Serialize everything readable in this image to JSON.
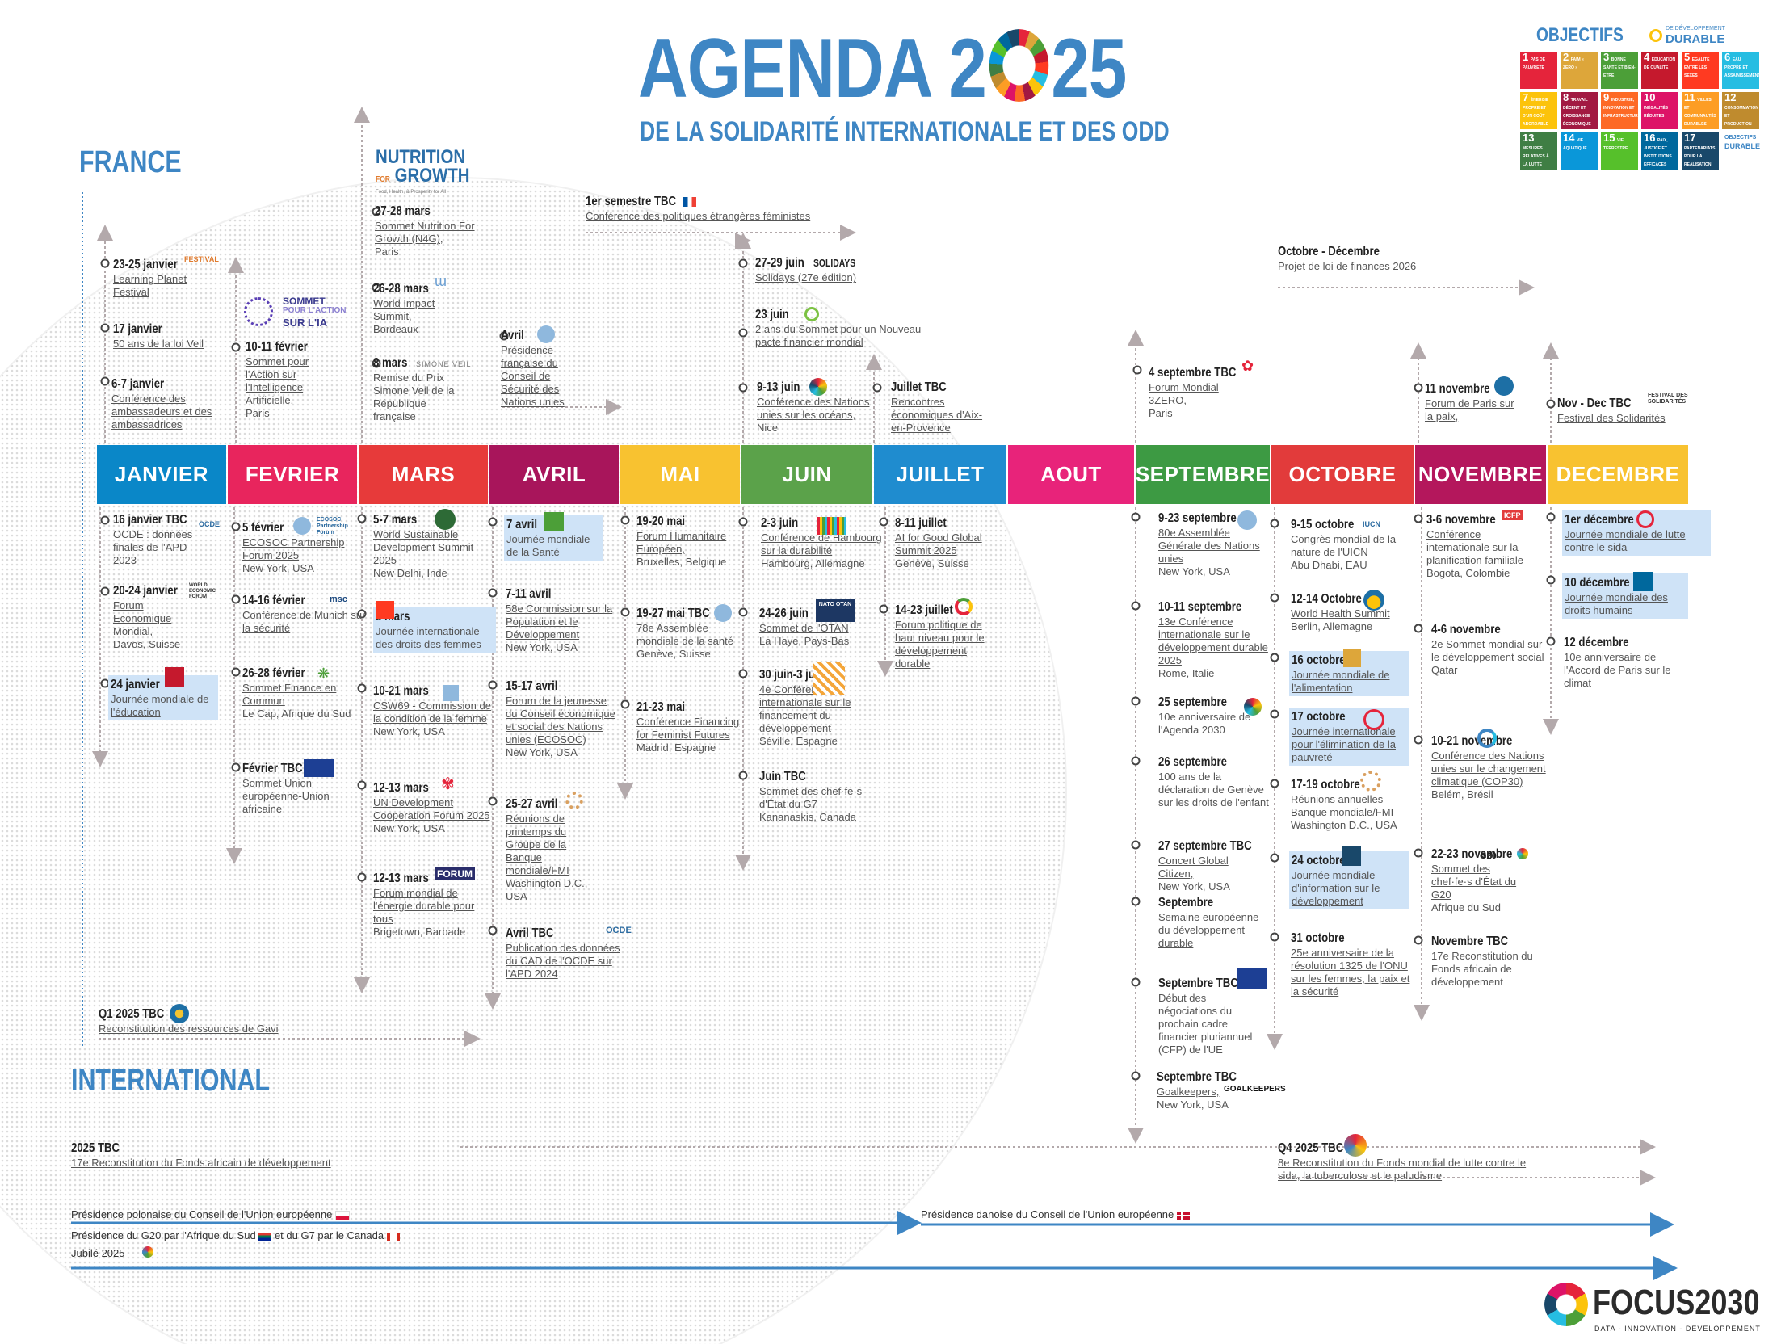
{
  "header": {
    "title_left": "AGENDA 2",
    "title_right": "25",
    "subtitle": "DE LA SOLIDARITÉ INTERNATIONALE ET DES ODD"
  },
  "sections": {
    "france": "FRANCE",
    "international": "INTERNATIONAL"
  },
  "odd_logo": {
    "word": "OBJECTIFS",
    "sub1": "DE DÉVELOPPEMENT",
    "sub2": "DURABLE"
  },
  "sdg_tiles": [
    {
      "n": "1",
      "label": "PAS DE PAUVRETÉ",
      "color": "#e5243b"
    },
    {
      "n": "2",
      "label": "FAIM « ZÉRO »",
      "color": "#dda63a"
    },
    {
      "n": "3",
      "label": "BONNE SANTÉ ET BIEN-ÊTRE",
      "color": "#4c9f38"
    },
    {
      "n": "4",
      "label": "ÉDUCATION DE QUALITÉ",
      "color": "#c5192d"
    },
    {
      "n": "5",
      "label": "ÉGALITÉ ENTRE LES SEXES",
      "color": "#ff3a21"
    },
    {
      "n": "6",
      "label": "EAU PROPRE ET ASSAINISSEMENT",
      "color": "#26bde2"
    },
    {
      "n": "7",
      "label": "ÉNERGIE PROPRE ET D'UN COÛT ABORDABLE",
      "color": "#fcc30b"
    },
    {
      "n": "8",
      "label": "TRAVAIL DÉCENT ET CROISSANCE ÉCONOMIQUE",
      "color": "#a21942"
    },
    {
      "n": "9",
      "label": "INDUSTRIE, INNOVATION ET INFRASTRUCTURE",
      "color": "#fd6925"
    },
    {
      "n": "10",
      "label": "INÉGALITÉS RÉDUITES",
      "color": "#dd1367"
    },
    {
      "n": "11",
      "label": "VILLES ET COMMUNAUTÉS DURABLES",
      "color": "#fd9d24"
    },
    {
      "n": "12",
      "label": "CONSOMMATION ET PRODUCTION RESPONSABLES",
      "color": "#bf8b2e"
    },
    {
      "n": "13",
      "label": "MESURES RELATIVES À LA LUTTE CONTRE LES CHANGEMENTS CLIMATIQUES",
      "color": "#3f7e44"
    },
    {
      "n": "14",
      "label": "VIE AQUATIQUE",
      "color": "#0a97d9"
    },
    {
      "n": "15",
      "label": "VIE TERRESTRE",
      "color": "#56c02b"
    },
    {
      "n": "16",
      "label": "PAIX, JUSTICE ET INSTITUTIONS EFFICACES",
      "color": "#00689d"
    },
    {
      "n": "17",
      "label": "PARTENARIATS POUR LA RÉALISATION DES OBJECTIFS",
      "color": "#19486a"
    }
  ],
  "months": [
    {
      "label": "JANVIER",
      "color": "#0a87c8"
    },
    {
      "label": "FEVRIER",
      "color": "#e8255d"
    },
    {
      "label": "MARS",
      "color": "#e73a3a"
    },
    {
      "label": "AVRIL",
      "color": "#a8155b"
    },
    {
      "label": "MAI",
      "color": "#f8c230"
    },
    {
      "label": "JUIN",
      "color": "#5ba24a"
    },
    {
      "label": "JUILLET",
      "color": "#1f8ccf"
    },
    {
      "label": "AOUT",
      "color": "#e8237a"
    },
    {
      "label": "SEPTEMBRE",
      "color": "#3d9a43"
    },
    {
      "label": "OCTOBRE",
      "color": "#e23b3b"
    },
    {
      "label": "NOVEMBRE",
      "color": "#b4175c"
    },
    {
      "label": "DECEMBRE",
      "color": "#f8c230"
    }
  ],
  "france_events": [
    {
      "d": "23-25 janvier",
      "t": "Learning Planet Festival",
      "p": ""
    },
    {
      "d": "17 janvier",
      "t": "50 ans de la loi Veil",
      "p": ""
    },
    {
      "d": "6-7 janvier",
      "t": "Conférence des ambassadeurs et des ambassadrices",
      "p": ""
    },
    {
      "d": "10-11 février",
      "t": "Sommet pour l'Action sur l'Intelligence Artificielle,",
      "p": "Paris"
    },
    {
      "d": "27-28 mars",
      "t": "Sommet Nutrition For Growth (N4G),",
      "p": "Paris"
    },
    {
      "d": "26-28 mars",
      "t": "World Impact Summit,",
      "p": "Bordeaux"
    },
    {
      "d": "8 mars",
      "t": "",
      "p": "Remise du Prix Simone Veil de la République française"
    },
    {
      "d": "Avril",
      "t": "Présidence française du Conseil de Sécurité des Nations unies",
      "p": ""
    },
    {
      "d": "1er semestre TBC",
      "t": "Conférence des politiques étrangères féministes",
      "p": ""
    },
    {
      "d": "27-29 juin",
      "t": "Solidays (27e édition)",
      "p": ""
    },
    {
      "d": "23 juin",
      "t": "2 ans du Sommet pour un Nouveau pacte financier mondial",
      "p": ""
    },
    {
      "d": "9-13 juin",
      "t": "Conférence des Nations unies sur les océans,",
      "p": "Nice"
    },
    {
      "d": "Juillet TBC",
      "t": "Rencontres économiques d'Aix-en-Provence",
      "p": ""
    },
    {
      "d": "Octobre - Décembre",
      "t": "",
      "p": "Projet de loi de finances 2026"
    },
    {
      "d": "4 septembre TBC",
      "t": "Forum Mondial 3ZERO,",
      "p": "Paris"
    },
    {
      "d": "11 novembre",
      "t": "Forum de Paris sur la paix,",
      "p": "Paris"
    },
    {
      "d": "Nov - Dec TBC",
      "t": "Festival des Solidarités",
      "p": ""
    }
  ],
  "intl_events": [
    {
      "d": "16 janvier TBC",
      "t": "",
      "p": "OCDE : données finales de l'APD 2023"
    },
    {
      "d": "20-24 janvier",
      "t": "Forum Economique Mondial,",
      "p": "Davos, Suisse"
    },
    {
      "d": "24 janvier",
      "t": "Journée mondiale de l'éducation",
      "p": ""
    },
    {
      "d": "5 février",
      "t": "ECOSOC Partnership Forum 2025",
      "p": "New York, USA"
    },
    {
      "d": "14-16 février",
      "t": "Conférence de Munich sur la sécurité",
      "p": ""
    },
    {
      "d": "26-28 février",
      "t": "Sommet Finance en Commun",
      "p": "Le Cap, Afrique du Sud"
    },
    {
      "d": "Février TBC",
      "t": "",
      "p": "Sommet Union européenne-Union africaine"
    },
    {
      "d": "5-7 mars",
      "t": "World Sustainable Development Summit 2025",
      "p": "New Delhi, Inde"
    },
    {
      "d": "8 mars",
      "t": "Journée internationale des droits des femmes",
      "p": ""
    },
    {
      "d": "10-21 mars",
      "t": "CSW69 - Commission de la condition de la femme",
      "p": "New York, USA"
    },
    {
      "d": "12-13 mars",
      "t": "UN Development Cooperation Forum 2025",
      "p": "New York, USA"
    },
    {
      "d": "12-13 mars",
      "t": "Forum mondial de l'énergie durable pour tous",
      "p": "Brigetown, Barbade"
    },
    {
      "d": "7 avril",
      "t": "Journée mondiale de la Santé",
      "p": ""
    },
    {
      "d": "7-11 avril",
      "t": "58e Commission sur la Population et le Développement",
      "p": "New York, USA"
    },
    {
      "d": "15-17 avril",
      "t": "Forum de la jeunesse du Conseil économique et social des Nations unies (ECOSOC)",
      "p": "New York, USA"
    },
    {
      "d": "25-27 avril",
      "t": "Réunions de printemps du Groupe de la Banque mondiale/FMI",
      "p": "Washington D.C., USA"
    },
    {
      "d": "Avril TBC",
      "t": "Publication des données du CAD de l'OCDE sur l'APD 2024",
      "p": ""
    },
    {
      "d": "19-20 mai",
      "t": "Forum Humanitaire Européen,",
      "p": "Bruxelles, Belgique"
    },
    {
      "d": "19-27 mai TBC",
      "t": "",
      "p": "78e Assemblée mondiale de la santé Genève, Suisse"
    },
    {
      "d": "21-23 mai",
      "t": "Conférence Financing for Feminist Futures",
      "p": "Madrid, Espagne"
    },
    {
      "d": "2-3 juin",
      "t": "Conférence de Hambourg sur la durabilité",
      "p": "Hambourg, Allemagne"
    },
    {
      "d": "24-26 juin",
      "t": "Sommet de l'OTAN",
      "p": "La Haye, Pays-Bas"
    },
    {
      "d": "30 juin-3 juillet",
      "t": "4e Conférence internationale sur le financement du développement",
      "p": "Séville, Espagne"
    },
    {
      "d": "Juin TBC",
      "t": "",
      "p": "Sommet des chef·fe·s d'État du G7 Kananaskis, Canada"
    },
    {
      "d": "8-11 juillet",
      "t": "AI for Good Global Summit 2025",
      "p": "Genève, Suisse"
    },
    {
      "d": "14-23 juillet",
      "t": "Forum politique de haut niveau pour le développement durable",
      "p": ""
    },
    {
      "d": "9-23 septembre",
      "t": "80e Assemblée Générale des Nations unies",
      "p": "New York, USA"
    },
    {
      "d": "10-11 septembre",
      "t": "13e Conférence internationale sur le développement durable 2025",
      "p": "Rome, Italie"
    },
    {
      "d": "25 septembre",
      "t": "",
      "p": "10e anniversaire de l'Agenda 2030"
    },
    {
      "d": "26 septembre",
      "t": "",
      "p": "100 ans de la déclaration de Genève sur les droits de l'enfant"
    },
    {
      "d": "27 septembre TBC",
      "t": "Concert Global Citizen,",
      "p": "New York, USA"
    },
    {
      "d": "Septembre",
      "t": "Semaine européenne du développement durable",
      "p": ""
    },
    {
      "d": "Septembre TBC",
      "t": "",
      "p": "Début des négociations du prochain cadre financier pluriannuel (CFP) de l'UE"
    },
    {
      "d": "Septembre TBC",
      "t": "Goalkeepers,",
      "p": "New York, USA"
    },
    {
      "d": "9-15 octobre",
      "t": "Congrès mondial de la nature de l'UICN",
      "p": "Abu Dhabi, EAU"
    },
    {
      "d": "12-14 Octobre",
      "t": "World Health Summit",
      "p": "Berlin, Allemagne"
    },
    {
      "d": "16 octobre",
      "t": "Journée mondiale de l'alimentation",
      "p": ""
    },
    {
      "d": "17 octobre",
      "t": "Journée internationale pour l'élimination de la pauvreté",
      "p": ""
    },
    {
      "d": "17-19 octobre",
      "t": "Réunions annuelles Banque mondiale/FMI",
      "p": "Washington D.C., USA"
    },
    {
      "d": "24 octobre",
      "t": "Journée mondiale d'information sur le développement",
      "p": ""
    },
    {
      "d": "31 octobre",
      "t": "25e anniversaire de la résolution 1325 de l'ONU sur les femmes, la paix et la sécurité",
      "p": ""
    },
    {
      "d": "3-6 novembre",
      "t": "Conférence internationale sur la planification familiale",
      "p": "Bogota, Colombie"
    },
    {
      "d": "4-6 novembre",
      "t": "2e Sommet mondial sur le développement social",
      "p": "Qatar"
    },
    {
      "d": "10-21 novembre",
      "t": "Conférence des Nations unies sur le changement climatique (COP30)",
      "p": "Belém, Brésil"
    },
    {
      "d": "22-23 novembre",
      "t": "Sommet des chef·fe·s d'État du G20",
      "p": "Afrique du Sud"
    },
    {
      "d": "Novembre TBC",
      "t": "",
      "p": "17e Reconstitution du Fonds africain de développement"
    },
    {
      "d": "1er décembre",
      "t": "Journée mondiale de lutte contre le sida",
      "p": ""
    },
    {
      "d": "10 décembre",
      "t": "Journée mondiale des droits humains",
      "p": ""
    },
    {
      "d": "12 décembre",
      "t": "",
      "p": "10e anniversaire de l'Accord de Paris sur le climat"
    },
    {
      "d": "Q1 2025 TBC",
      "t": "Reconstitution des ressources de Gavi",
      "p": ""
    },
    {
      "d": "2025 TBC",
      "t": "17e Reconstitution du Fonds africain de développement",
      "p": ""
    },
    {
      "d": "Q4 2025 TBC",
      "t": "8e Reconstitution du Fonds mondial de lutte contre le sida, la tuberculose et le paludisme",
      "p": ""
    }
  ],
  "bars": {
    "polish": "Présidence polonaise du Conseil de l'Union européenne",
    "danish": "Présidence danoise du Conseil de l'Union européenne",
    "g20": "Présidence du G20 par l'Afrique du Sud",
    "g7": "et du G7 par le Canada",
    "jubile": "Jubilé 2025"
  },
  "logos": {
    "n4g_1": "NUTRITION",
    "n4g_2": "FOR",
    "n4g_3": "GROWTH",
    "n4g_4": "Food, Health, & Prosperity for All",
    "ia_1": "SOMMET",
    "ia_2": "POUR L'ACTION",
    "ia_3": "SUR L'IA",
    "solidays": "SOLIDAYS",
    "simone": "SIMONE VEIL",
    "festival": "FESTIVAL DES SOLIDARITÉS",
    "goalkeepers": "GOALKEEPERS",
    "forum": "FORUM",
    "ocde": "OCDE",
    "otan": "NATO OTAN",
    "msc": "msc",
    "iucn": "IUCN",
    "g20": "G20",
    "icfp": "ICFP",
    "ecosoc": "ECOSOC Partnership Forum",
    "wef": "WORLD ECONOMIC FORUM",
    "festival_lp": "FESTIVAL"
  },
  "footer": {
    "brand": "FOCUS2030",
    "tagline": "DATA - INNOVATION - DÉVELOPPEMENT"
  }
}
